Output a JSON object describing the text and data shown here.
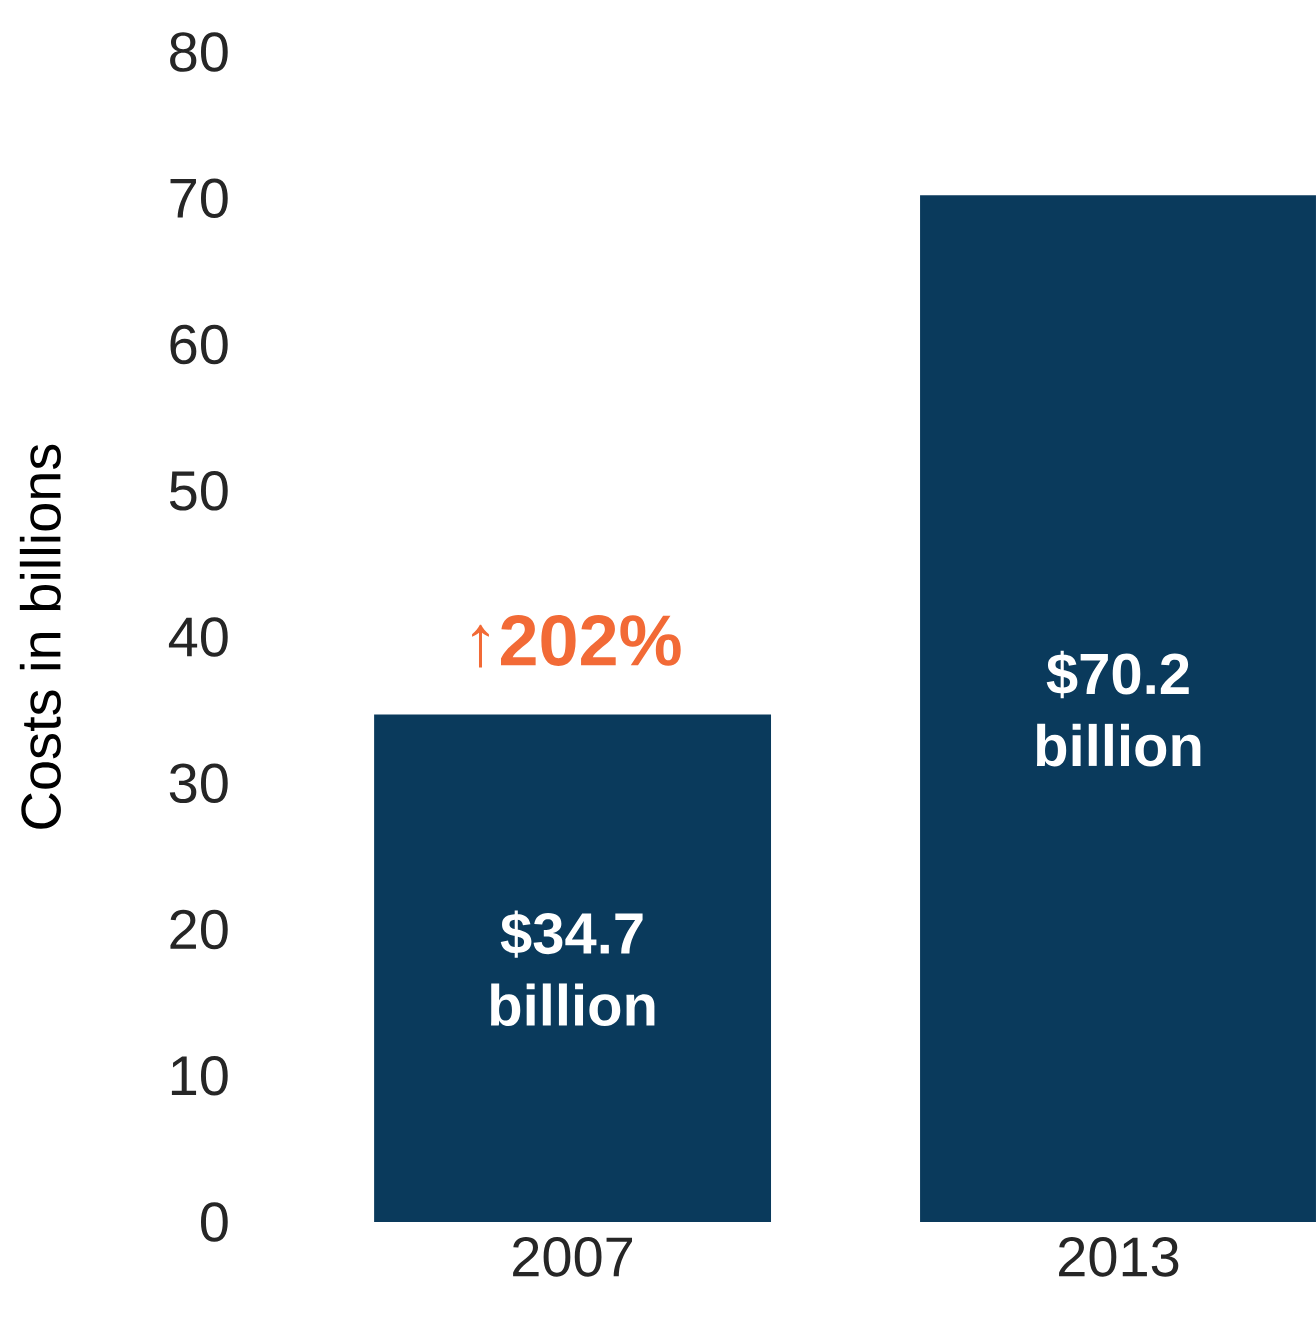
{
  "chart_data": {
    "type": "bar",
    "ylabel": "Costs in billions",
    "categories": [
      "2007",
      "2013"
    ],
    "values": [
      34.7,
      70.2
    ],
    "value_labels": [
      "$34.7 billion",
      "$70.2 billion"
    ],
    "color": "#0a3a5c",
    "ylim": [
      0,
      80
    ],
    "yticks": [
      0,
      10,
      20,
      30,
      40,
      50,
      60,
      70,
      80
    ],
    "annotations": [
      "↑202%"
    ]
  }
}
